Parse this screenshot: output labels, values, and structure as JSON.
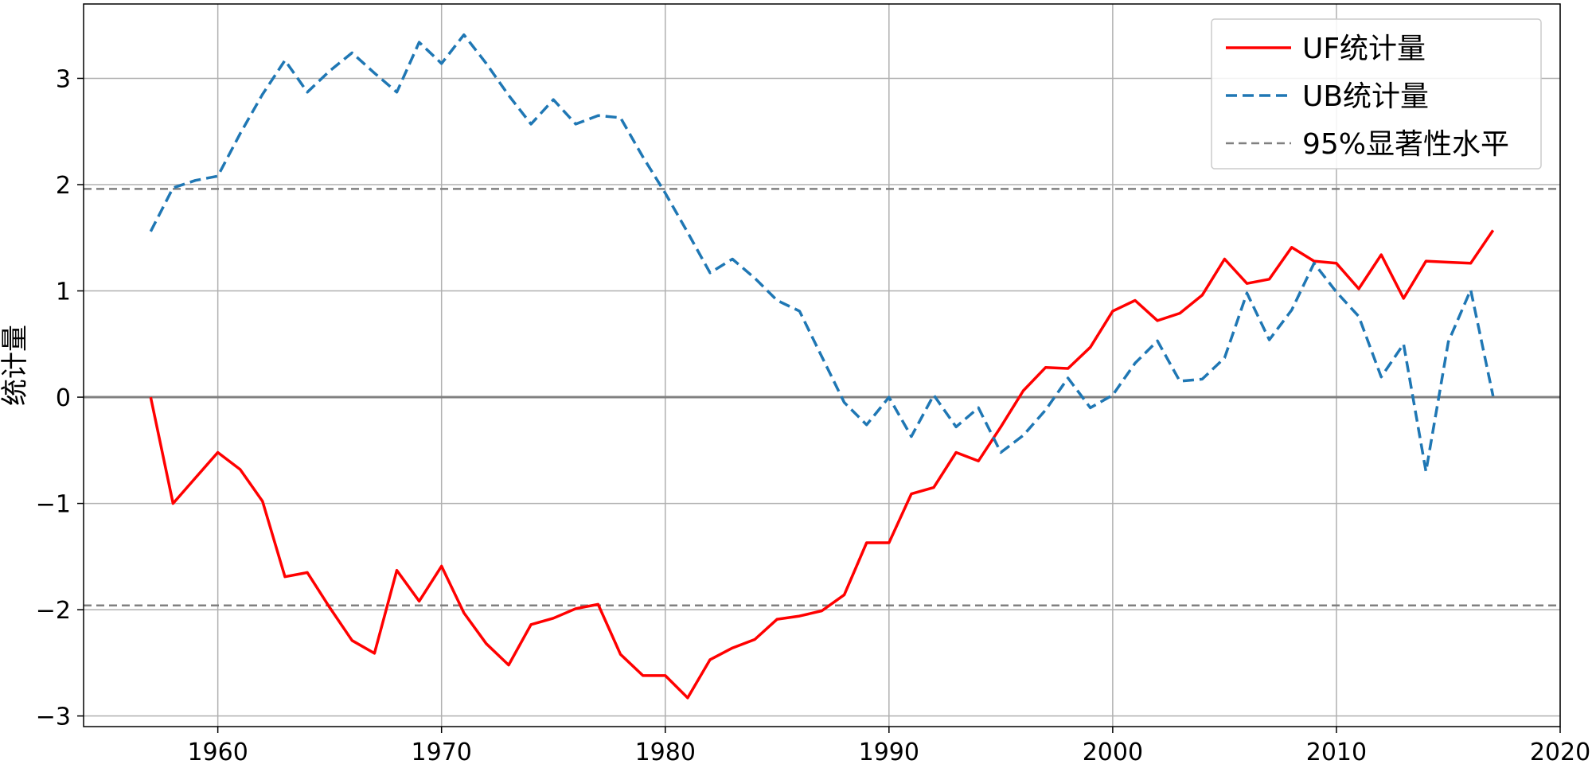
{
  "chart_data": {
    "type": "line",
    "title": "",
    "xlabel": "",
    "ylabel": "统计量",
    "xlim": [
      1954,
      2020
    ],
    "ylim": [
      -3.1,
      3.7
    ],
    "xticks": [
      1960,
      1970,
      1980,
      1990,
      2000,
      2010,
      2020
    ],
    "yticks": [
      -3,
      -2,
      -1,
      0,
      1,
      2,
      3
    ],
    "ytick_labels": [
      "−3",
      "−2",
      "−1",
      "0",
      "1",
      "2",
      "3"
    ],
    "grid": true,
    "legend_position": "top-right",
    "x": [
      1957,
      1958,
      1959,
      1960,
      1961,
      1962,
      1963,
      1964,
      1965,
      1966,
      1967,
      1968,
      1969,
      1970,
      1971,
      1972,
      1973,
      1974,
      1975,
      1976,
      1977,
      1978,
      1979,
      1980,
      1981,
      1982,
      1983,
      1984,
      1985,
      1986,
      1987,
      1988,
      1989,
      1990,
      1991,
      1992,
      1993,
      1994,
      1995,
      1996,
      1997,
      1998,
      1999,
      2000,
      2001,
      2002,
      2003,
      2004,
      2005,
      2006,
      2007,
      2008,
      2009,
      2010,
      2011,
      2012,
      2013,
      2014,
      2015,
      2016,
      2017
    ],
    "series": [
      {
        "name": "UF统计量",
        "color": "#ff0000",
        "style": "solid",
        "values": [
          0,
          -1.0,
          -0.76,
          -0.52,
          -0.68,
          -0.98,
          -1.69,
          -1.65,
          -1.98,
          -2.29,
          -2.41,
          -1.63,
          -1.92,
          -1.59,
          -2.03,
          -2.32,
          -2.52,
          -2.14,
          -2.08,
          -1.99,
          -1.95,
          -2.42,
          -2.62,
          -2.62,
          -2.83,
          -2.47,
          -2.36,
          -2.28,
          -2.09,
          -2.06,
          -2.01,
          -1.86,
          -1.37,
          -1.37,
          -0.91,
          -0.85,
          -0.52,
          -0.6,
          -0.28,
          0.06,
          0.28,
          0.27,
          0.47,
          0.81,
          0.91,
          0.72,
          0.79,
          0.96,
          1.3,
          1.07,
          1.11,
          1.41,
          1.28,
          1.26,
          1.02,
          1.34,
          0.93,
          1.28,
          1.27,
          1.26,
          1.57
        ]
      },
      {
        "name": "UB统计量",
        "color": "#1f77b4",
        "style": "dashed",
        "values": [
          1.56,
          1.97,
          2.04,
          2.08,
          2.48,
          2.85,
          3.17,
          2.87,
          3.07,
          3.24,
          3.05,
          2.87,
          3.34,
          3.14,
          3.41,
          3.14,
          2.84,
          2.57,
          2.8,
          2.57,
          2.65,
          2.63,
          2.26,
          1.92,
          1.55,
          1.17,
          1.3,
          1.12,
          0.91,
          0.81,
          0.38,
          -0.05,
          -0.26,
          0.0,
          -0.37,
          0.02,
          -0.28,
          -0.1,
          -0.52,
          -0.36,
          -0.12,
          0.18,
          -0.1,
          0.02,
          0.32,
          0.53,
          0.15,
          0.17,
          0.37,
          0.98,
          0.54,
          0.82,
          1.26,
          0.99,
          0.76,
          0.19,
          0.5,
          -0.7,
          0.52,
          1.01,
          0.01
        ]
      }
    ],
    "reference_lines": {
      "name": "95%显著性水平",
      "color": "#808080",
      "style": "dashed",
      "values": [
        1.96,
        -1.96
      ]
    },
    "zero_line": {
      "value": 0,
      "color": "#808080"
    }
  }
}
